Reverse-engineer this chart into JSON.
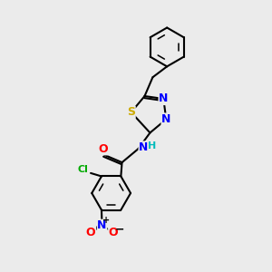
{
  "background_color": "#ebebeb",
  "bond_color": "#000000",
  "bond_width": 1.5,
  "atom_colors": {
    "C": "#000000",
    "N": "#0000ff",
    "O": "#ff0000",
    "S": "#ccaa00",
    "Cl": "#00aa00",
    "H": "#00bbbb"
  },
  "figsize": [
    3.0,
    3.0
  ],
  "dpi": 100
}
